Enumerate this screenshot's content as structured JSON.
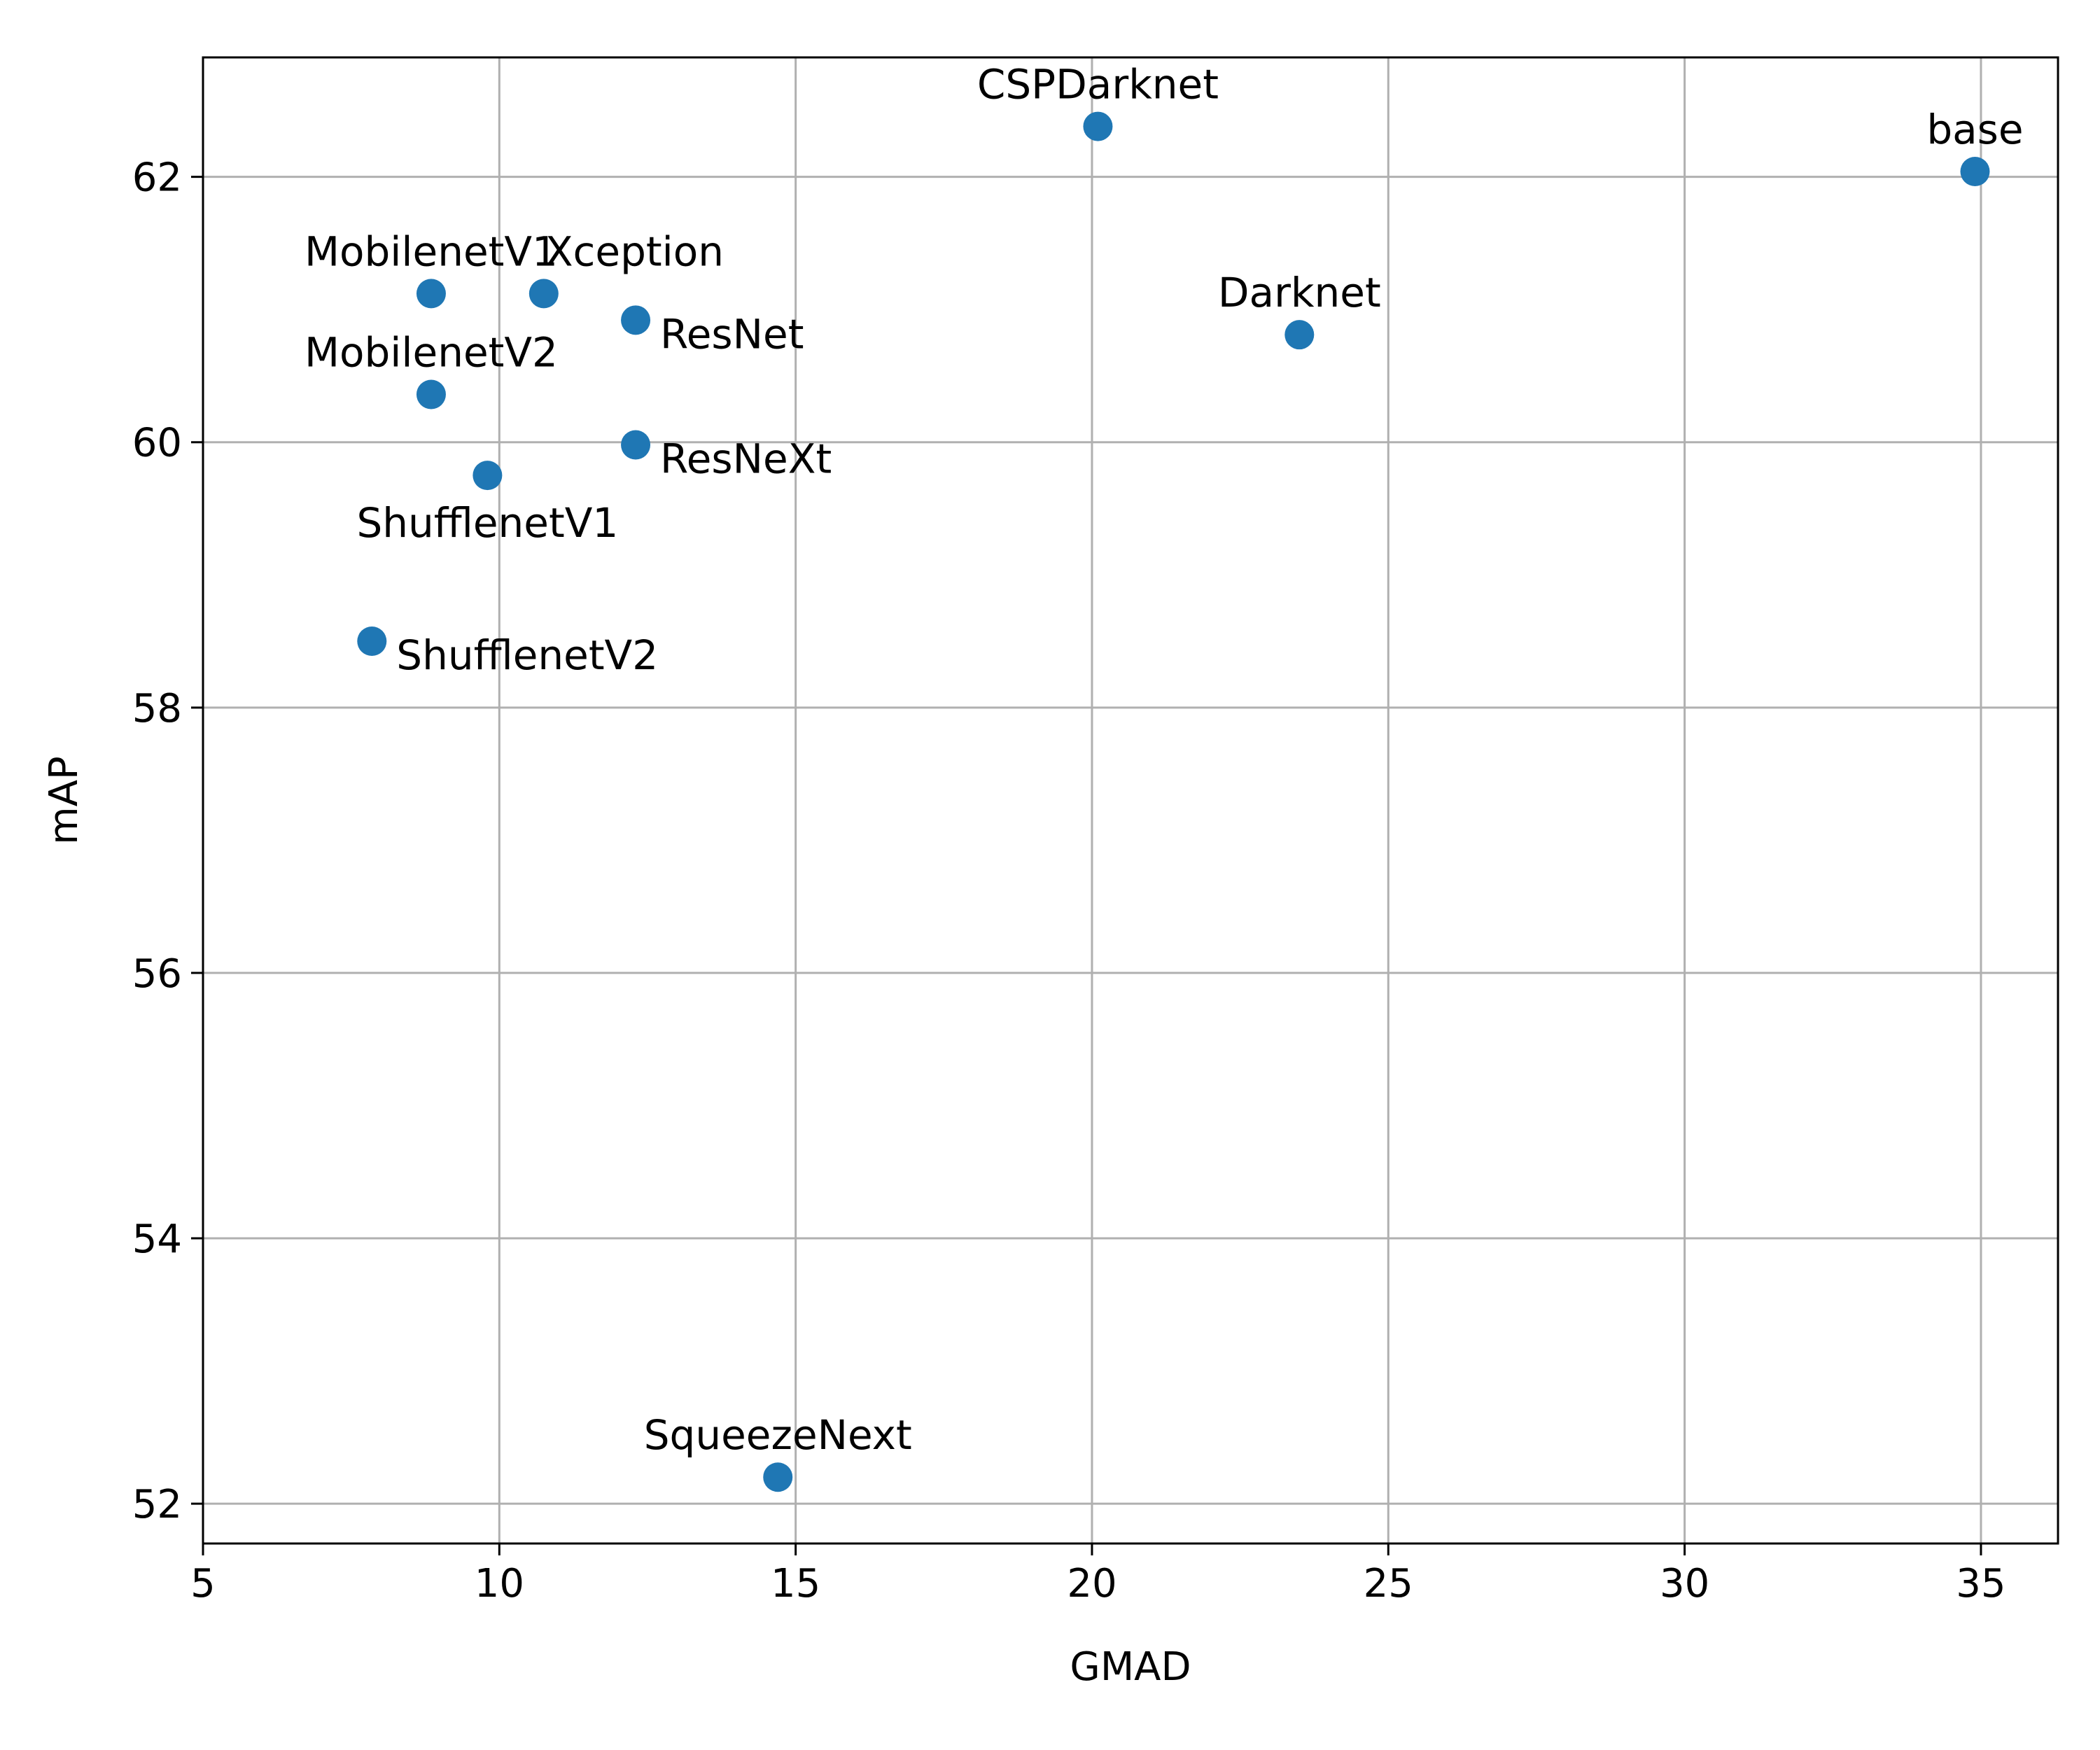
{
  "chart_data": {
    "type": "scatter",
    "xlabel": "GMAD",
    "ylabel": "mAP",
    "xlim": [
      5,
      36.3
    ],
    "ylim": [
      51.7,
      62.9
    ],
    "xticks": [
      5,
      10,
      15,
      20,
      25,
      30,
      35
    ],
    "yticks": [
      52,
      54,
      56,
      58,
      60,
      62
    ],
    "grid": true,
    "colors": {
      "marker": "#1f77b4",
      "grid": "#b0b0b0",
      "axes": "#000000"
    },
    "points": [
      {
        "label": "CSPDarknet",
        "x": 20.1,
        "y": 62.38,
        "label_pos": "above"
      },
      {
        "label": "base",
        "x": 34.9,
        "y": 62.04,
        "label_pos": "above"
      },
      {
        "label": "MobilenetV1",
        "x": 8.85,
        "y": 61.12,
        "label_pos": "above"
      },
      {
        "label": "Xception",
        "x": 10.75,
        "y": 61.12,
        "label_pos": "above-right"
      },
      {
        "label": "ResNet",
        "x": 12.3,
        "y": 60.92,
        "label_pos": "below-right"
      },
      {
        "label": "Darknet",
        "x": 23.5,
        "y": 60.81,
        "label_pos": "above"
      },
      {
        "label": "MobilenetV2",
        "x": 8.85,
        "y": 60.36,
        "label_pos": "above"
      },
      {
        "label": "ResNeXt",
        "x": 12.3,
        "y": 59.98,
        "label_pos": "below-right"
      },
      {
        "label": "ShufflenetV1",
        "x": 9.8,
        "y": 59.75,
        "label_pos": "below"
      },
      {
        "label": "ShufflenetV2",
        "x": 7.85,
        "y": 58.5,
        "label_pos": "below-right"
      },
      {
        "label": "SqueezeNext",
        "x": 14.7,
        "y": 52.2,
        "label_pos": "above"
      }
    ]
  }
}
